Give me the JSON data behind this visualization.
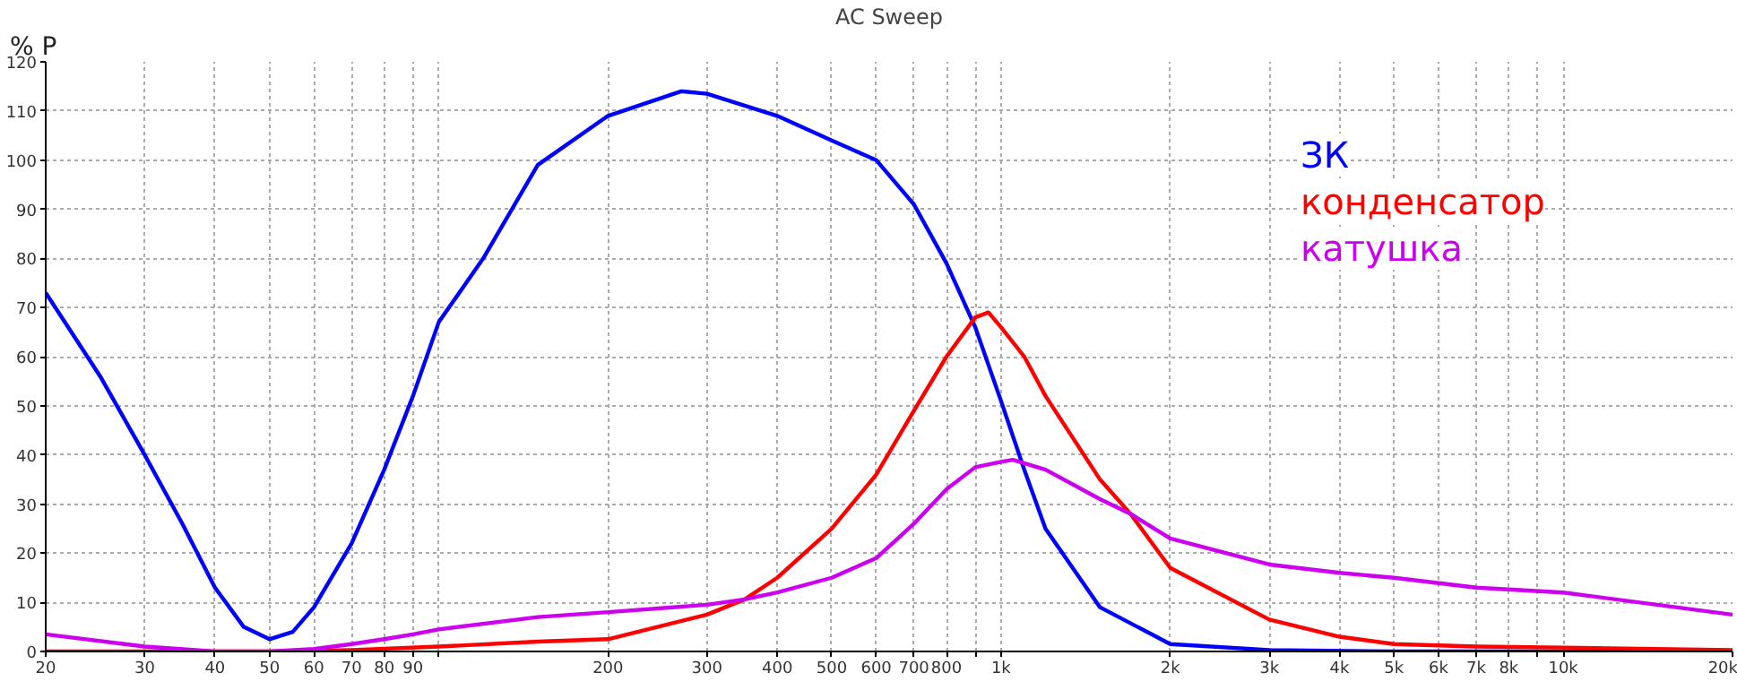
{
  "chart_data": {
    "type": "line",
    "title": "AC Sweep",
    "ylabel": "% P",
    "log": "x",
    "grid": true,
    "legend": "top right",
    "line_style": "solid",
    "marker": "none",
    "xlim": [
      20,
      20000
    ],
    "ylim": [
      0,
      120
    ],
    "xticks": [
      20,
      30,
      40,
      50,
      60,
      70,
      80,
      90,
      {
        "value": 100,
        "label": null
      },
      200,
      300,
      400,
      500,
      600,
      700,
      800,
      {
        "value": 900,
        "label": null
      },
      {
        "value": 1000,
        "label": "1k"
      },
      {
        "value": 2000,
        "label": "2k"
      },
      {
        "value": 3000,
        "label": "3k"
      },
      {
        "value": 4000,
        "label": "4k"
      },
      {
        "value": 5000,
        "label": "5k"
      },
      {
        "value": 6000,
        "label": "6k"
      },
      {
        "value": 7000,
        "label": "7k"
      },
      {
        "value": 8000,
        "label": "8k"
      },
      {
        "value": 9000,
        "label": null
      },
      {
        "value": 10000,
        "label": "10k"
      },
      {
        "value": 20000,
        "label": "20k"
      }
    ],
    "yticks": [
      0,
      10,
      20,
      30,
      40,
      50,
      60,
      70,
      80,
      90,
      100,
      110,
      120
    ],
    "series": [
      {
        "name": "ЗК",
        "color": "#0000ff",
        "x": [
          20,
          25,
          30,
          35,
          40,
          45,
          50,
          55,
          60,
          70,
          80,
          90,
          100,
          120,
          150,
          200,
          270,
          300,
          400,
          500,
          600,
          700,
          800,
          900,
          1000,
          1100,
          1200,
          1500,
          2000,
          3000,
          5000,
          20000
        ],
        "values": [
          73,
          56,
          40,
          26,
          13,
          5,
          2.5,
          4,
          9,
          22,
          37,
          52,
          67,
          80,
          99,
          109,
          114,
          113.5,
          109,
          104,
          100,
          91,
          79,
          66,
          51,
          37,
          25,
          9,
          1.5,
          0.3,
          0,
          0
        ]
      },
      {
        "name": "конденсатор",
        "color": "#ff0000",
        "x": [
          20,
          50,
          70,
          100,
          150,
          200,
          300,
          350,
          400,
          500,
          600,
          700,
          800,
          900,
          950,
          1000,
          1100,
          1200,
          1500,
          1700,
          2000,
          3000,
          4000,
          5000,
          7000,
          10000,
          20000
        ],
        "values": [
          0,
          0,
          0.3,
          1,
          2,
          2.5,
          7.5,
          10.6,
          15,
          25,
          36,
          49,
          60,
          68,
          69,
          66,
          60,
          52,
          35,
          28,
          17,
          6.5,
          3,
          1.5,
          1,
          0.8,
          0.3
        ]
      },
      {
        "name": "катушка",
        "color": "#cc00ee",
        "x": [
          20,
          30,
          40,
          50,
          60,
          70,
          80,
          90,
          100,
          150,
          200,
          300,
          350,
          400,
          500,
          600,
          700,
          800,
          900,
          1000,
          1050,
          1200,
          1500,
          1700,
          2000,
          3000,
          4000,
          5000,
          7000,
          10000,
          20000
        ],
        "values": [
          3.5,
          1,
          0,
          0,
          0.5,
          1.5,
          2.5,
          3.5,
          4.5,
          7,
          8,
          9.5,
          10.6,
          12,
          15,
          19,
          26,
          33,
          37.5,
          38.6,
          39,
          37,
          31,
          28,
          23,
          17.7,
          16,
          15,
          13,
          12,
          7.5
        ]
      }
    ]
  }
}
